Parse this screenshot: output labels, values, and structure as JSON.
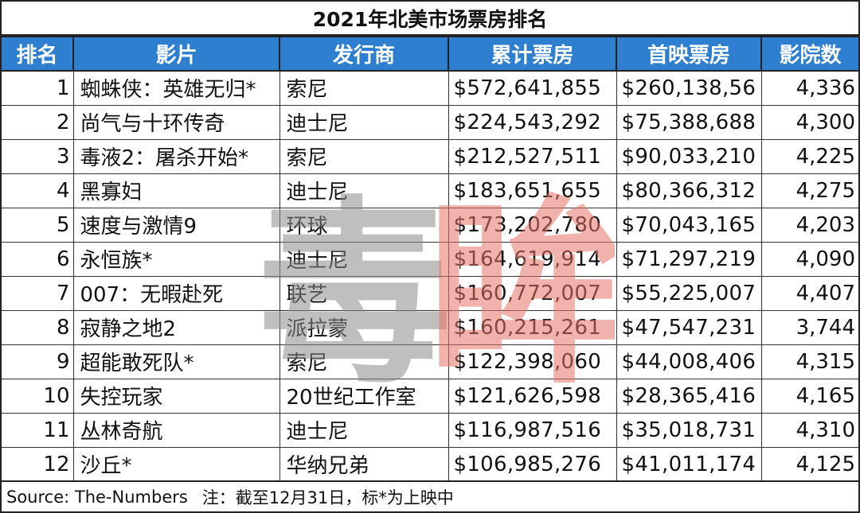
{
  "title": "2021年北美市场票房排名",
  "columns": [
    "排名",
    "影片",
    "发行商",
    "累计票房",
    "首映票房",
    "影院数"
  ],
  "rows": [
    {
      "rank": "1",
      "film": "蜘蛛侠：英雄无归*",
      "distributor": "索尼",
      "total": "$572,641,855",
      "opening": "$260,138,56",
      "theaters": "4,336"
    },
    {
      "rank": "2",
      "film": "尚气与十环传奇",
      "distributor": "迪士尼",
      "total": "$224,543,292",
      "opening": "$75,388,688",
      "theaters": "4,300"
    },
    {
      "rank": "3",
      "film": "毒液2：屠杀开始*",
      "distributor": "索尼",
      "total": "$212,527,511",
      "opening": "$90,033,210",
      "theaters": "4,225"
    },
    {
      "rank": "4",
      "film": "黑寡妇",
      "distributor": "迪士尼",
      "total": "$183,651,655",
      "opening": "$80,366,312",
      "theaters": "4,275"
    },
    {
      "rank": "5",
      "film": "速度与激情9",
      "distributor": "环球",
      "total": "$173,202,780",
      "opening": "$70,043,165",
      "theaters": "4,203"
    },
    {
      "rank": "6",
      "film": "永恒族*",
      "distributor": "迪士尼",
      "total": "$164,619,914",
      "opening": "$71,297,219",
      "theaters": "4,090"
    },
    {
      "rank": "7",
      "film": "007：无暇赴死",
      "distributor": "联艺",
      "total": "$160,772,007",
      "opening": "$55,225,007",
      "theaters": "4,407"
    },
    {
      "rank": "8",
      "film": "寂静之地2",
      "distributor": "派拉蒙",
      "total": "$160,215,261",
      "opening": "$47,547,231",
      "theaters": "3,744"
    },
    {
      "rank": "9",
      "film": "超能敢死队*",
      "distributor": "索尼",
      "total": "$122,398,060",
      "opening": "$44,008,406",
      "theaters": "4,315"
    },
    {
      "rank": "10",
      "film": "失控玩家",
      "distributor": "20世纪工作室",
      "total": "$121,626,598",
      "opening": "$28,365,416",
      "theaters": "4,165"
    },
    {
      "rank": "11",
      "film": "丛林奇航",
      "distributor": "迪士尼",
      "total": "$116,987,516",
      "opening": "$35,018,731",
      "theaters": "4,310"
    },
    {
      "rank": "12",
      "film": "沙丘*",
      "distributor": "华纳兄弟",
      "total": "$106,985,276",
      "opening": "$41,011,174",
      "theaters": "4,125"
    }
  ],
  "footer": {
    "source": "Source: The-Numbers",
    "note": "注：截至12月31日，标*为上映中"
  },
  "watermark": {
    "text_left": "毒",
    "text_right": "眸",
    "color_left": "#8a8a8a",
    "color_right": "#e57368"
  },
  "colors": {
    "header_bg": "#2f7fd0",
    "header_text": "#ffffff",
    "border": "#222222"
  }
}
